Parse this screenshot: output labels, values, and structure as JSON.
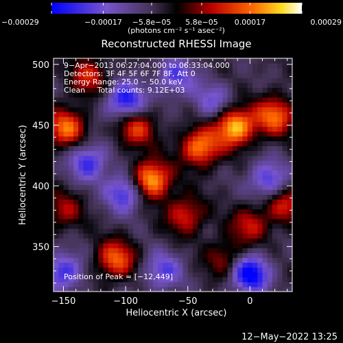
{
  "chart_data": {
    "type": "heatmap",
    "title": "Reconstructed RHESSI Image",
    "xlabel": "Heliocentric X (arcsec)",
    "ylabel": "Heliocentric Y (arcsec)",
    "xlim": [
      -158,
      34
    ],
    "ylim": [
      313,
      505
    ],
    "xticks": [
      -150,
      -100,
      -50,
      0
    ],
    "yticks": [
      350,
      400,
      450,
      500
    ],
    "xtick_labels": [
      "−150",
      "−100",
      "−50",
      "0"
    ],
    "ytick_labels": [
      "350",
      "400",
      "450",
      "500"
    ],
    "colorbar": {
      "range": [
        -0.00029,
        0.00029
      ],
      "tick_values": [
        -0.00029,
        -0.00017,
        -5.8e-05,
        5.8e-05,
        0.00017,
        0.00029
      ],
      "tick_labels": [
        "−0.00029",
        "−0.00017",
        "−5.8e−05",
        "5.8e−05",
        "0.00017",
        "0.00029"
      ],
      "units_label": "(photons cm⁻² s⁻¹ asec⁻²)"
    },
    "annotations": [
      "9−Apr−2013 06:27:04.000 to 06:33:04.000",
      "Detectors: 3F 4F 5F 6F 7F 8F, Att 0",
      "Energy Range: 25.0 − 50.0 keV",
      "Clean     Total counts: 9.12E+03"
    ],
    "peak_label": "Position of Peak = [−12,449]",
    "bright_sources": [
      {
        "x": -80,
        "y": 405,
        "value": 0.00029
      },
      {
        "x": -12,
        "y": 449,
        "value": 0.00029
      },
      {
        "x": -40,
        "y": 432,
        "value": 0.00024
      },
      {
        "x": 20,
        "y": 458,
        "value": 0.00022
      },
      {
        "x": -148,
        "y": 448,
        "value": 0.00022
      },
      {
        "x": -108,
        "y": 340,
        "value": 0.00021
      },
      {
        "x": -92,
        "y": 448,
        "value": 0.00018
      },
      {
        "x": -52,
        "y": 376,
        "value": 0.00016
      },
      {
        "x": -130,
        "y": 490,
        "value": 0.00015
      },
      {
        "x": 0,
        "y": 368,
        "value": 0.00014
      },
      {
        "x": -150,
        "y": 380,
        "value": 0.00012
      },
      {
        "x": -20,
        "y": 340,
        "value": 0.00012
      },
      {
        "x": 28,
        "y": 385,
        "value": 0.00015
      }
    ],
    "dark_sources": [
      {
        "x": -100,
        "y": 470,
        "value": -0.00022
      },
      {
        "x": -130,
        "y": 420,
        "value": -0.00018
      },
      {
        "x": -100,
        "y": 395,
        "value": -0.0002
      },
      {
        "x": 0,
        "y": 328,
        "value": -0.00026
      },
      {
        "x": 15,
        "y": 405,
        "value": -0.00017
      },
      {
        "x": -60,
        "y": 490,
        "value": -0.00015
      },
      {
        "x": -150,
        "y": 330,
        "value": -0.00018
      },
      {
        "x": -70,
        "y": 330,
        "value": -0.00015
      },
      {
        "x": -30,
        "y": 470,
        "value": -0.00012
      }
    ]
  },
  "timestamp": "12−May−2022 13:25"
}
